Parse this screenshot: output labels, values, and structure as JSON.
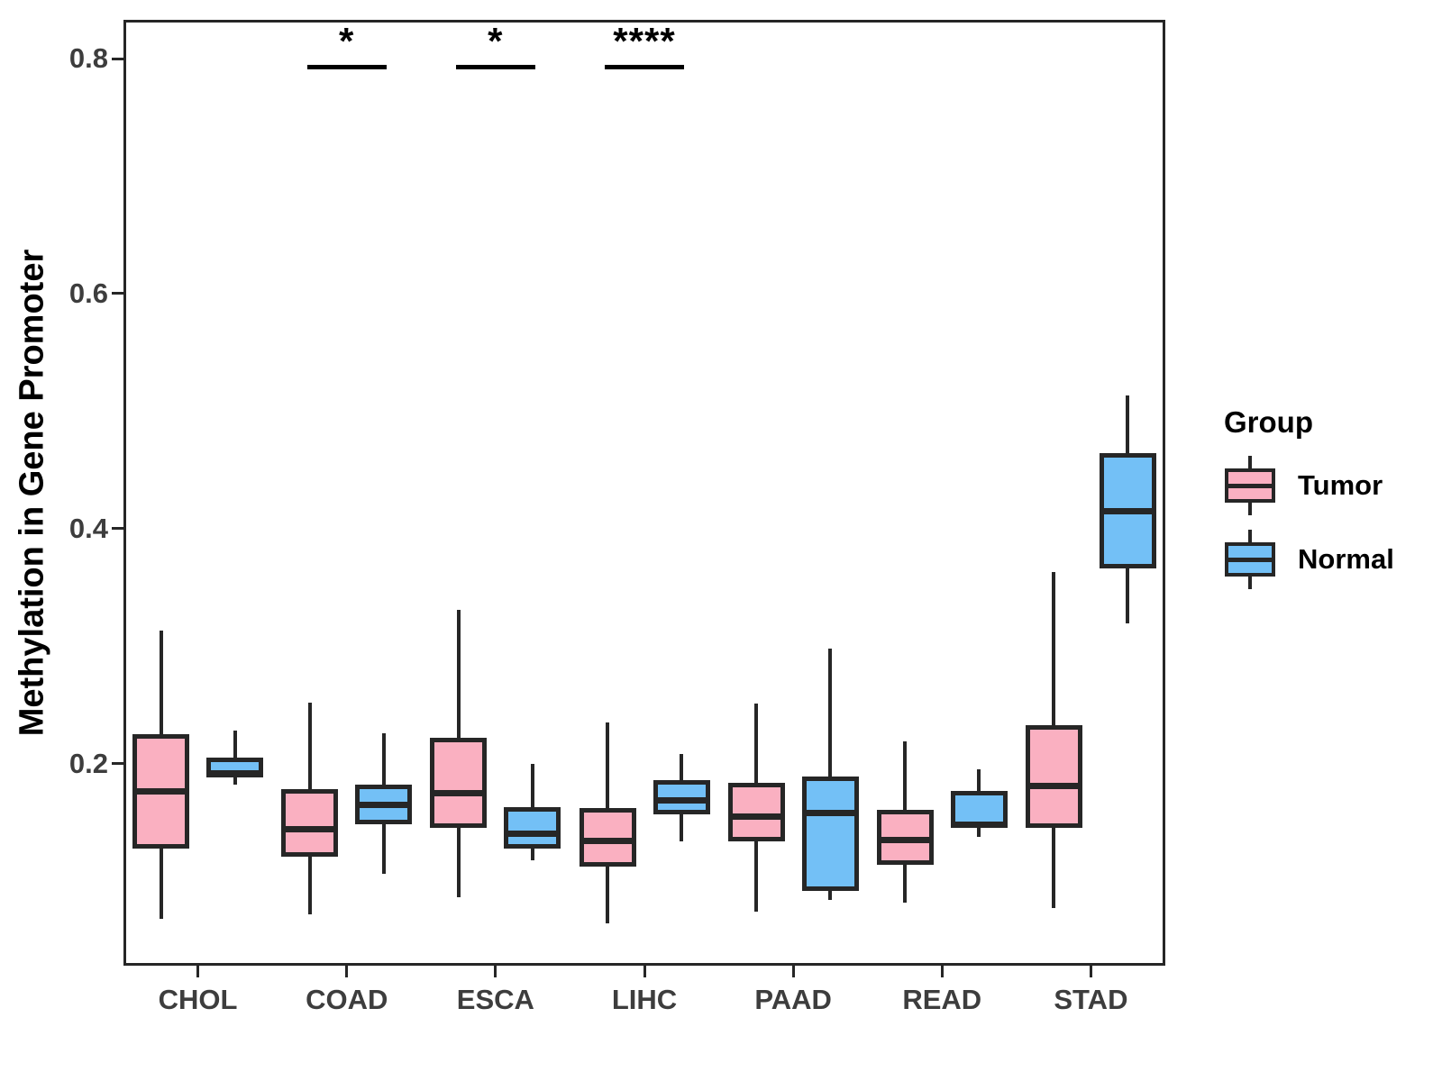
{
  "figure": {
    "legend": {
      "title": "Group",
      "items": [
        {
          "label": "Tumor",
          "color": "#FAB0C1"
        },
        {
          "label": "Normal",
          "color": "#73C0F6"
        }
      ]
    }
  },
  "chart_data": {
    "type": "boxplot",
    "title": "",
    "xlabel": "",
    "ylabel": "Methylation in Gene Promoter",
    "categories": [
      "CHOL",
      "COAD",
      "ESCA",
      "LIHC",
      "PAAD",
      "READ",
      "STAD"
    ],
    "ylim": [
      0.028,
      0.833
    ],
    "yticks": [
      0.2,
      0.4,
      0.6,
      0.8
    ],
    "ytick_labels": [
      "0.2",
      "0.4",
      "0.6",
      "0.8"
    ],
    "grid": false,
    "legend_position": "right",
    "series": [
      {
        "name": "Tumor",
        "color": "#FAB0C1",
        "boxes": [
          {
            "category": "CHOL",
            "min": 0.068,
            "q1": 0.128,
            "median": 0.176,
            "q3": 0.225,
            "max": 0.313
          },
          {
            "category": "COAD",
            "min": 0.072,
            "q1": 0.121,
            "median": 0.144,
            "q3": 0.178,
            "max": 0.252
          },
          {
            "category": "ESCA",
            "min": 0.086,
            "q1": 0.145,
            "median": 0.175,
            "q3": 0.222,
            "max": 0.331
          },
          {
            "category": "LIHC",
            "min": 0.064,
            "q1": 0.112,
            "median": 0.134,
            "q3": 0.162,
            "max": 0.235
          },
          {
            "category": "PAAD",
            "min": 0.074,
            "q1": 0.134,
            "median": 0.155,
            "q3": 0.184,
            "max": 0.251
          },
          {
            "category": "READ",
            "min": 0.082,
            "q1": 0.114,
            "median": 0.135,
            "q3": 0.161,
            "max": 0.219
          },
          {
            "category": "STAD",
            "min": 0.077,
            "q1": 0.145,
            "median": 0.181,
            "q3": 0.233,
            "max": 0.363
          }
        ]
      },
      {
        "name": "Normal",
        "color": "#73C0F6",
        "boxes": [
          {
            "category": "CHOL",
            "min": 0.182,
            "q1": 0.188,
            "median": 0.192,
            "q3": 0.205,
            "max": 0.228
          },
          {
            "category": "COAD",
            "min": 0.106,
            "q1": 0.148,
            "median": 0.165,
            "q3": 0.182,
            "max": 0.226
          },
          {
            "category": "ESCA",
            "min": 0.118,
            "q1": 0.128,
            "median": 0.14,
            "q3": 0.163,
            "max": 0.2
          },
          {
            "category": "LIHC",
            "min": 0.134,
            "q1": 0.157,
            "median": 0.169,
            "q3": 0.186,
            "max": 0.208
          },
          {
            "category": "PAAD",
            "min": 0.084,
            "q1": 0.092,
            "median": 0.158,
            "q3": 0.189,
            "max": 0.298
          },
          {
            "category": "READ",
            "min": 0.138,
            "q1": 0.145,
            "median": 0.148,
            "q3": 0.177,
            "max": 0.195
          },
          {
            "category": "STAD",
            "min": 0.319,
            "q1": 0.366,
            "median": 0.415,
            "q3": 0.464,
            "max": 0.513
          }
        ]
      }
    ],
    "annotations": [
      {
        "category": "COAD",
        "label": "*",
        "bar_y": 0.795
      },
      {
        "category": "ESCA",
        "label": "*",
        "bar_y": 0.795
      },
      {
        "category": "LIHC",
        "label": "****",
        "bar_y": 0.795
      }
    ],
    "colors": {
      "box_border": "#262626",
      "axis": "#262626",
      "tick_label": "#3d3d3d",
      "annotation": "#000000"
    }
  }
}
